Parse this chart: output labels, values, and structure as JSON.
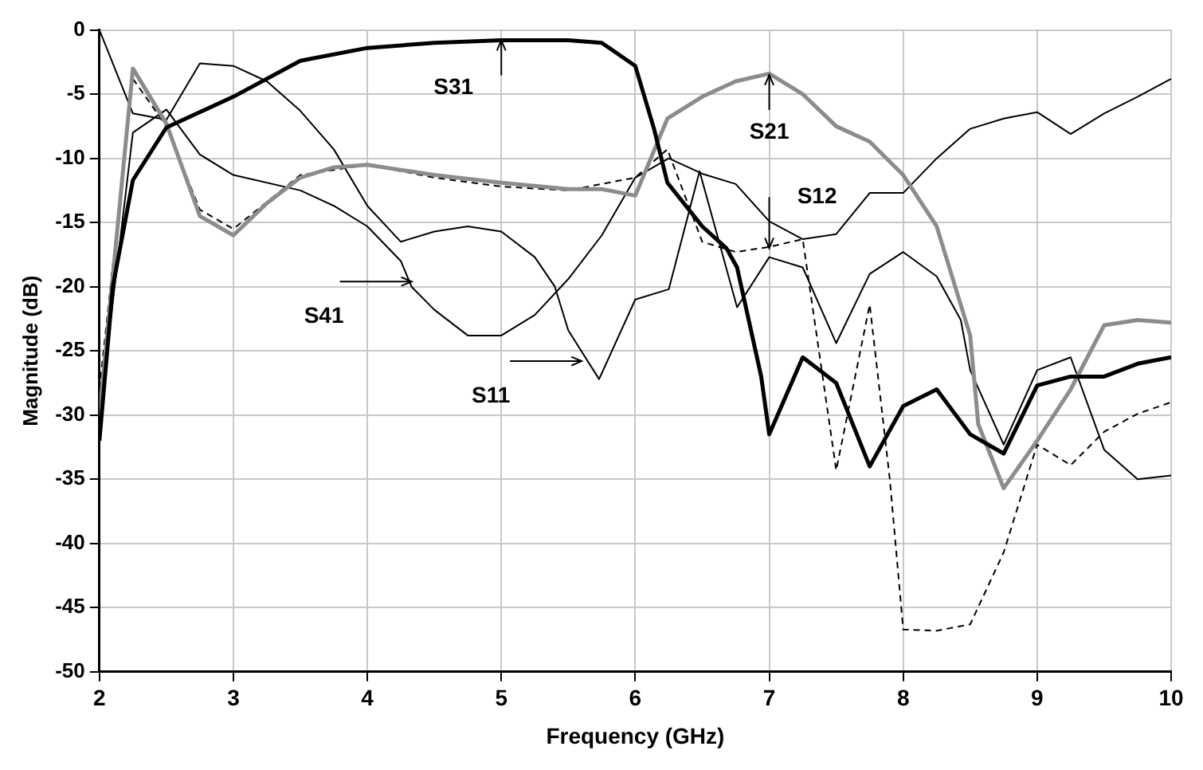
{
  "chart_data": {
    "type": "line",
    "xlabel": "Frequency (GHz)",
    "ylabel": "Magnitude (dB)",
    "xlim": [
      2,
      10
    ],
    "xticks": [
      2,
      3,
      4,
      5,
      6,
      7,
      8,
      9,
      10
    ],
    "ylim": [
      -50,
      0
    ],
    "yticks": [
      -50,
      -45,
      -40,
      -35,
      -30,
      -25,
      -20,
      -15,
      -10,
      -5,
      0
    ],
    "grid": true,
    "legend": false,
    "marker": "none",
    "series": [
      {
        "color": "#000000",
        "line_style": "solid",
        "x": [
          2,
          2.1,
          2.25,
          2.5,
          3,
          3.5,
          4,
          4.5,
          5,
          5.5,
          5.75,
          6,
          6.14,
          6.24,
          6.5,
          6.68,
          6.76,
          6.94,
          7,
          7.25,
          7.5,
          7.75,
          8,
          8.25,
          8.5,
          8.75,
          9,
          9.25,
          9.5,
          9.75,
          10
        ],
        "values": [
          -32,
          -20,
          -11.7,
          -7.6,
          -5.2,
          -2.4,
          -1.4,
          -1,
          -0.8,
          -0.8,
          -1,
          -2.8,
          -7.7,
          -11.9,
          -15.3,
          -17,
          -18.5,
          -27,
          -31.5,
          -25.5,
          -27.5,
          -34,
          -29.3,
          -28,
          -31.5,
          -33,
          -27.7,
          -27,
          -27,
          -26,
          -25.5
        ]
      },
      {
        "color": "#8c8c8c",
        "line_style": "solid",
        "x": [
          2,
          2.25,
          2.5,
          2.75,
          3,
          3.25,
          3.5,
          3.75,
          4,
          4.5,
          5,
          5.5,
          5.75,
          6,
          6.24,
          6.5,
          6.75,
          7,
          7.25,
          7.5,
          7.75,
          8,
          8.25,
          8.5,
          8.56,
          8.75,
          9,
          9.25,
          9.5,
          9.75,
          10
        ],
        "values": [
          -30,
          -3,
          -7.3,
          -14.5,
          -16,
          -13.5,
          -11.5,
          -10.7,
          -10.5,
          -11.3,
          -11.9,
          -12.4,
          -12.4,
          -12.9,
          -6.9,
          -5.2,
          -4,
          -3.4,
          -5,
          -7.5,
          -8.7,
          -11.3,
          -15.3,
          -23.8,
          -30.7,
          -35.7,
          -32,
          -28,
          -23,
          -22.6,
          -22.8
        ]
      },
      {
        "color": "#000000",
        "line_style": "dashed",
        "x": [
          2,
          2.25,
          2.5,
          2.75,
          3,
          3.5,
          4,
          4.5,
          5,
          5.5,
          6,
          6.24,
          6.5,
          6.75,
          7,
          7.25,
          7.5,
          7.75,
          7.9,
          8,
          8.25,
          8.5,
          8.75,
          9,
          9.25,
          9.5,
          9.75,
          10
        ],
        "values": [
          -28,
          -3.8,
          -7.5,
          -14,
          -15.5,
          -11.3,
          -10.5,
          -11.5,
          -12.2,
          -12.5,
          -11.5,
          -9.3,
          -16.5,
          -17.3,
          -16.9,
          -16.3,
          -34.3,
          -21.4,
          -35,
          -46.7,
          -46.8,
          -46.3,
          -40.7,
          -32.3,
          -33.9,
          -31.3,
          -29.9,
          -29
        ]
      },
      {
        "color": "#000000",
        "line_style": "solid",
        "x": [
          2,
          2.25,
          2.5,
          2.75,
          3,
          3.25,
          3.5,
          3.75,
          4,
          4.25,
          4.5,
          4.75,
          5,
          5.25,
          5.4,
          5.5,
          5.73,
          6,
          6.25,
          6.48,
          6.76,
          7,
          7.25,
          7.5,
          7.75,
          8,
          8.25,
          8.43,
          8.5,
          8.75,
          9,
          9.25,
          9.5,
          9.75,
          10
        ],
        "values": [
          0,
          -6.5,
          -7,
          -2.6,
          -2.8,
          -4,
          -6.3,
          -9.3,
          -13.7,
          -16.5,
          -15.7,
          -15.3,
          -15.7,
          -17.7,
          -20,
          -23.4,
          -27.2,
          -21,
          -20.2,
          -11,
          -21.6,
          -17.7,
          -18.5,
          -24.4,
          -19,
          -17.3,
          -19.2,
          -22.6,
          -26.5,
          -32.3,
          -26.5,
          -25.5,
          -32.7,
          -35,
          -34.7
        ]
      },
      {
        "color": "#000000",
        "line_style": "solid",
        "x": [
          2,
          2.25,
          2.5,
          2.75,
          3,
          3.5,
          3.75,
          4,
          4.25,
          4.33,
          4.5,
          4.75,
          5,
          5.25,
          5.5,
          5.75,
          6,
          6.25,
          6.5,
          6.75,
          7,
          7.25,
          7.5,
          7.75,
          8,
          8.25,
          8.5,
          8.75,
          9,
          9.25,
          9.5,
          9.75,
          10
        ],
        "values": [
          -30,
          -8,
          -6.2,
          -9.7,
          -11.3,
          -12.5,
          -13.7,
          -15.3,
          -18,
          -20,
          -21.8,
          -23.8,
          -23.8,
          -22.2,
          -19.4,
          -16,
          -11.5,
          -10,
          -11.2,
          -12,
          -14.9,
          -16.3,
          -15.9,
          -12.7,
          -12.7,
          -10,
          -7.7,
          -6.9,
          -6.4,
          -8.1,
          -6.5,
          -5.2,
          -3.8
        ]
      }
    ],
    "annotations": [
      {
        "text": "S31",
        "x": 5,
        "y": -0.8
      },
      {
        "text": "S21",
        "x": 7,
        "y": -3.5
      },
      {
        "text": "S12",
        "x": 7,
        "y": -17
      },
      {
        "text": "S41",
        "x": 4.33,
        "y": -19.6
      },
      {
        "text": "S11",
        "x": 5.6,
        "y": -25.8
      }
    ]
  }
}
